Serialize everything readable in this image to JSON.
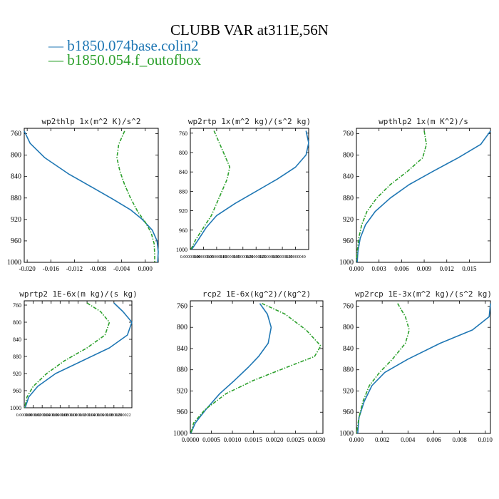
{
  "title": "CLUBB VAR at311E,56N",
  "legend": [
    {
      "label": "b1850.074base.colin2",
      "color": "#1f77b4"
    },
    {
      "label": "b1850.054.f_outofbox",
      "color": "#2ca02c"
    }
  ],
  "chart_data": [
    {
      "type": "line",
      "title": "wp2thlp   1x(m^2 K)/s^2",
      "xlim": [
        -0.0205,
        0.0022
      ],
      "ylim": [
        750,
        1000
      ],
      "y_reversed": true,
      "xticks": [
        -0.02,
        -0.016,
        -0.012,
        -0.008,
        -0.004,
        0.0
      ],
      "xtick_labels": [
        "-0.020",
        "-0.016",
        "-0.012",
        "-0.008",
        "-0.004",
        "0.000"
      ],
      "yticks": [
        760,
        800,
        840,
        880,
        920,
        960,
        1000
      ],
      "series": [
        {
          "name": "b1850.074base.colin2",
          "x": [
            -0.0205,
            -0.0195,
            -0.017,
            -0.013,
            -0.009,
            -0.0055,
            -0.0025,
            -0.0005,
            0.0012,
            0.002,
            0.0022,
            0.0021
          ],
          "y": [
            755,
            778,
            805,
            835,
            860,
            882,
            902,
            920,
            940,
            960,
            980,
            1000
          ]
        },
        {
          "name": "b1850.054.f_outofbox",
          "x": [
            -0.0035,
            -0.0045,
            -0.0048,
            -0.0043,
            -0.0035,
            -0.0025,
            -0.0013,
            0.0,
            0.001,
            0.0015,
            0.0016,
            0.0016
          ],
          "y": [
            755,
            780,
            805,
            830,
            855,
            880,
            905,
            925,
            945,
            965,
            985,
            1000
          ]
        }
      ]
    },
    {
      "type": "line",
      "title": "wp2rtp  1x(m^2 kg)/(s^2 kg)",
      "xlim": [
        0,
        4.5e-07
      ],
      "ylim": [
        750,
        1000
      ],
      "y_reversed": true,
      "xtick_labels": [
        "0.00000000",
        "0.00000005",
        "0.00000010",
        "0.00000015",
        "0.00000020",
        "0.00000025",
        "0.00000030",
        "0.00000035",
        "0.00000040"
      ],
      "yticks": [
        760,
        800,
        840,
        880,
        920,
        960,
        1000
      ],
      "series": [
        {
          "name": "b1850.074base.colin2",
          "x": [
            4.4e-07,
            4.5e-07,
            4.4e-07,
            4e-07,
            3.3e-07,
            2.5e-07,
            1.7e-07,
            1e-07,
            6e-08,
            3e-08,
            5e-09
          ],
          "y": [
            755,
            780,
            805,
            830,
            855,
            880,
            905,
            930,
            955,
            980,
            1000
          ]
        },
        {
          "name": "b1850.054.f_outofbox",
          "x": [
            9e-08,
            1.1e-07,
            1.3e-07,
            1.5e-07,
            1.4e-07,
            1.2e-07,
            1e-07,
            8e-08,
            5e-08,
            2e-08,
            2e-09
          ],
          "y": [
            755,
            780,
            805,
            830,
            855,
            880,
            905,
            930,
            955,
            980,
            1000
          ]
        }
      ]
    },
    {
      "type": "line",
      "title": "wpthlp2  1x(m K^2)/s",
      "xlim": [
        0,
        0.0178
      ],
      "ylim": [
        750,
        1000
      ],
      "y_reversed": true,
      "xticks": [
        0.0,
        0.003,
        0.006,
        0.009,
        0.012,
        0.015
      ],
      "xtick_labels": [
        "0.000",
        "0.003",
        "0.006",
        "0.009",
        "0.012",
        "0.015"
      ],
      "yticks": [
        760,
        800,
        840,
        880,
        920,
        960,
        1000
      ],
      "series": [
        {
          "name": "b1850.074base.colin2",
          "x": [
            0.0178,
            0.0165,
            0.0135,
            0.0102,
            0.007,
            0.0045,
            0.0025,
            0.0012,
            0.0005,
            0.0002,
            0.0001
          ],
          "y": [
            755,
            780,
            805,
            830,
            855,
            880,
            905,
            930,
            955,
            980,
            1000
          ]
        },
        {
          "name": "b1850.054.f_outofbox",
          "x": [
            0.009,
            0.0093,
            0.0088,
            0.0068,
            0.0045,
            0.0027,
            0.0014,
            0.0007,
            0.0003,
            0.0001,
            0.0
          ],
          "y": [
            755,
            780,
            805,
            830,
            855,
            880,
            905,
            930,
            955,
            980,
            1000
          ]
        }
      ]
    },
    {
      "type": "line",
      "title": "wprtp2  1E-6x(m kg)/(s kg)",
      "xlim": [
        0,
        2.4e-05
      ],
      "ylim": [
        750,
        1000
      ],
      "y_reversed": true,
      "xtick_labels": [
        "0.000000",
        "0.000002",
        "0.000004",
        "0.000006",
        "0.000008",
        "0.000010",
        "0.000012",
        "0.000014",
        "0.000016",
        "0.000018",
        "0.000020",
        "0.000022"
      ],
      "yticks": [
        760,
        800,
        840,
        880,
        920,
        960,
        1000
      ],
      "series": [
        {
          "name": "b1850.074base.colin2",
          "x": [
            2e-05,
            2.2e-05,
            2.4e-05,
            2.3e-05,
            1.9e-05,
            1.3e-05,
            7e-06,
            3e-06,
            1e-06,
            2e-07
          ],
          "y": [
            755,
            775,
            800,
            830,
            860,
            890,
            920,
            950,
            975,
            1000
          ]
        },
        {
          "name": "b1850.054.f_outofbox",
          "x": [
            1.4e-05,
            1.7e-05,
            1.9e-05,
            1.8e-05,
            1.4e-05,
            9e-06,
            5e-06,
            2e-06,
            6e-07,
            1e-07
          ],
          "y": [
            755,
            775,
            800,
            830,
            860,
            890,
            920,
            950,
            975,
            1000
          ]
        }
      ]
    },
    {
      "type": "line",
      "title": "rcp2  1E-6x(kg^2)/(kg^2)",
      "xlim": [
        0,
        0.00315
      ],
      "ylim": [
        750,
        1000
      ],
      "y_reversed": true,
      "xticks": [
        0.0,
        0.0005,
        0.001,
        0.0015,
        0.002,
        0.0025,
        0.003
      ],
      "xtick_labels": [
        "0.0000",
        "0.0005",
        "0.0010",
        "0.0015",
        "0.0020",
        "0.0025",
        "0.0030"
      ],
      "yticks": [
        760,
        800,
        840,
        880,
        920,
        960,
        1000
      ],
      "series": [
        {
          "name": "b1850.074base.colin2",
          "x": [
            0.00165,
            0.00183,
            0.00192,
            0.00185,
            0.00162,
            0.00138,
            0.00105,
            0.0007,
            0.00037,
            0.00012,
            1e-05
          ],
          "y": [
            755,
            775,
            800,
            830,
            855,
            875,
            900,
            925,
            955,
            980,
            1000
          ]
        },
        {
          "name": "b1850.054.f_outofbox",
          "x": [
            0.0017,
            0.00225,
            0.00275,
            0.0031,
            0.00295,
            0.0023,
            0.0015,
            0.00085,
            0.00035,
            8e-05,
            1e-05
          ],
          "y": [
            755,
            775,
            805,
            835,
            855,
            875,
            900,
            925,
            955,
            980,
            1000
          ]
        }
      ]
    },
    {
      "type": "line",
      "title": "wp2rcp  1E-3x(m^2 kg)/(s^2 kg)",
      "xlim": [
        0,
        0.0104
      ],
      "ylim": [
        750,
        1000
      ],
      "y_reversed": true,
      "xticks": [
        0.0,
        0.002,
        0.004,
        0.006,
        0.008,
        0.01
      ],
      "xtick_labels": [
        "0.000",
        "0.002",
        "0.004",
        "0.006",
        "0.008",
        "0.010"
      ],
      "yticks": [
        760,
        800,
        840,
        880,
        920,
        960,
        1000
      ],
      "series": [
        {
          "name": "b1850.074base.colin2",
          "x": [
            0.0104,
            0.0103,
            0.009,
            0.0065,
            0.004,
            0.0022,
            0.0012,
            0.0006,
            0.0002,
            0.0001
          ],
          "y": [
            755,
            780,
            805,
            830,
            860,
            885,
            910,
            940,
            970,
            1000
          ]
        },
        {
          "name": "b1850.054.f_outofbox",
          "x": [
            0.0032,
            0.0038,
            0.0041,
            0.0038,
            0.0028,
            0.0018,
            0.001,
            0.0005,
            0.0002,
            0.0
          ],
          "y": [
            755,
            780,
            805,
            830,
            860,
            885,
            910,
            940,
            970,
            1000
          ]
        }
      ]
    }
  ]
}
